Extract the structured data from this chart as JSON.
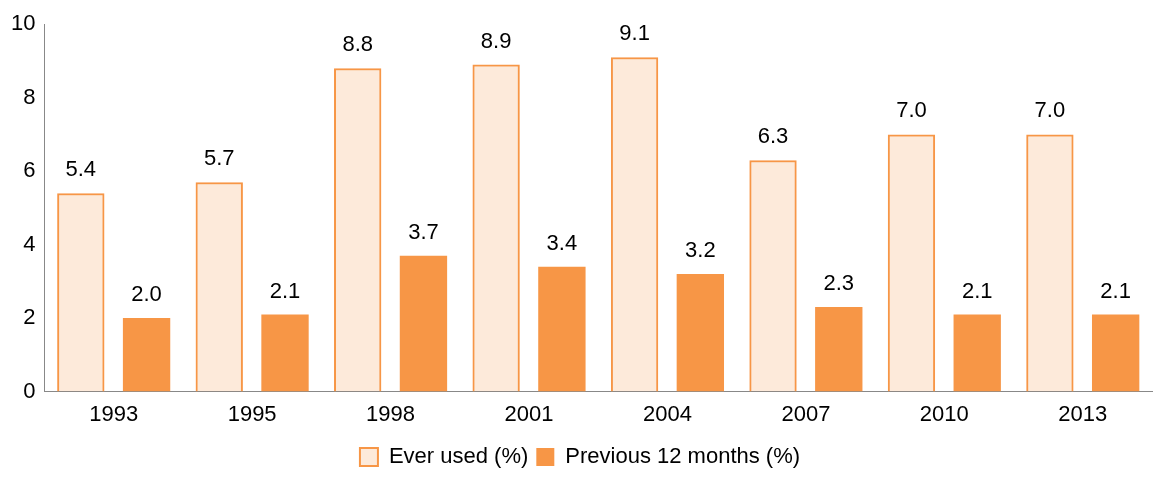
{
  "chart_data": {
    "type": "bar",
    "categories": [
      "1993",
      "1995",
      "1998",
      "2001",
      "2004",
      "2007",
      "2010",
      "2013"
    ],
    "series": [
      {
        "name": "Ever used (%)",
        "color": "#f79646",
        "values": [
          5.4,
          5.7,
          8.8,
          8.9,
          9.1,
          6.3,
          7.0,
          7.0
        ],
        "value_labels": [
          "5.4",
          "5.7",
          "8.8",
          "8.9",
          "9.1",
          "6.3",
          "7.0",
          "7.0"
        ]
      },
      {
        "name": "Previous 12 months (%)",
        "color": "#f79646",
        "values": [
          2.0,
          2.1,
          3.7,
          3.4,
          3.2,
          2.3,
          2.1,
          2.1
        ],
        "value_labels": [
          "2.0",
          "2.1",
          "3.7",
          "3.4",
          "3.2",
          "2.3",
          "2.1",
          "2.1"
        ]
      }
    ],
    "ylim": [
      0,
      10
    ],
    "yticks": [
      0,
      2,
      4,
      6,
      8,
      10
    ],
    "grid": false,
    "legend": "bottom"
  }
}
